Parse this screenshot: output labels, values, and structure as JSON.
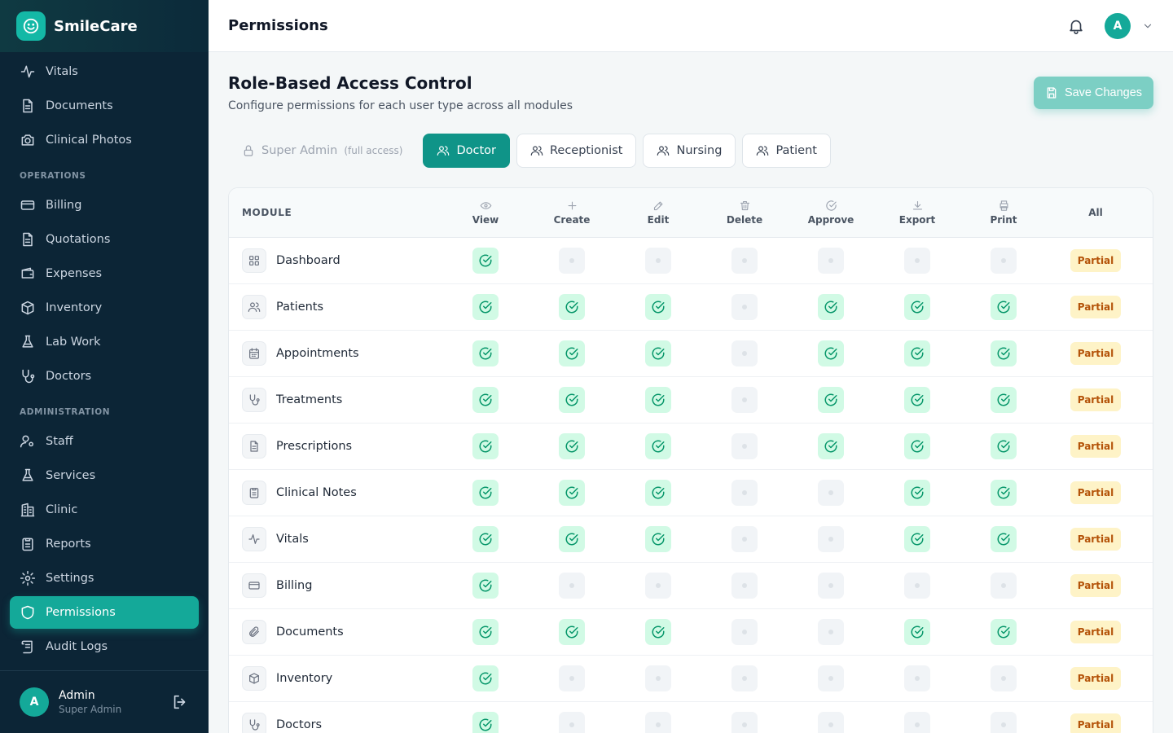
{
  "app": {
    "name": "SmileCare"
  },
  "sidebar": {
    "top_items": [
      {
        "label": "Vitals",
        "icon": "activity-icon"
      },
      {
        "label": "Documents",
        "icon": "file-icon"
      },
      {
        "label": "Clinical Photos",
        "icon": "camera-icon"
      }
    ],
    "operations_label": "OPERATIONS",
    "operations": [
      {
        "label": "Billing",
        "icon": "credit-card-icon"
      },
      {
        "label": "Quotations",
        "icon": "file-icon"
      },
      {
        "label": "Expenses",
        "icon": "wallet-icon"
      },
      {
        "label": "Inventory",
        "icon": "package-icon"
      },
      {
        "label": "Lab Work",
        "icon": "flask-icon"
      },
      {
        "label": "Doctors",
        "icon": "stethoscope-icon"
      }
    ],
    "administration_label": "ADMINISTRATION",
    "administration": [
      {
        "label": "Staff",
        "icon": "user-cog-icon"
      },
      {
        "label": "Services",
        "icon": "flask-icon"
      },
      {
        "label": "Clinic",
        "icon": "building-icon"
      },
      {
        "label": "Reports",
        "icon": "clipboard-icon"
      },
      {
        "label": "Settings",
        "icon": "gear-icon"
      },
      {
        "label": "Permissions",
        "icon": "shield-icon",
        "active": true
      },
      {
        "label": "Audit Logs",
        "icon": "scroll-icon"
      }
    ],
    "user": {
      "initial": "A",
      "name": "Admin",
      "role": "Super Admin"
    }
  },
  "header": {
    "title": "Permissions",
    "avatar_initial": "A"
  },
  "main": {
    "title": "Role-Based Access Control",
    "subtitle": "Configure permissions for each user type across all modules",
    "save_label": "Save Changes",
    "roles": [
      {
        "label": "Super Admin",
        "note": "(full access)",
        "state": "disabled"
      },
      {
        "label": "Doctor",
        "state": "active"
      },
      {
        "label": "Receptionist",
        "state": "normal"
      },
      {
        "label": "Nursing",
        "state": "normal"
      },
      {
        "label": "Patient",
        "state": "normal"
      }
    ],
    "table": {
      "module_header": "MODULE",
      "all_header": "All",
      "permissions": [
        {
          "label": "View",
          "icon": "eye-icon"
        },
        {
          "label": "Create",
          "icon": "plus-icon"
        },
        {
          "label": "Edit",
          "icon": "pencil-icon"
        },
        {
          "label": "Delete",
          "icon": "trash-icon"
        },
        {
          "label": "Approve",
          "icon": "check-circle-icon"
        },
        {
          "label": "Export",
          "icon": "download-icon"
        },
        {
          "label": "Print",
          "icon": "printer-icon"
        }
      ],
      "rows": [
        {
          "module": "Dashboard",
          "icon": "grid-icon",
          "perms": [
            true,
            false,
            false,
            false,
            false,
            false,
            false
          ],
          "status": "Partial"
        },
        {
          "module": "Patients",
          "icon": "users-icon",
          "perms": [
            true,
            true,
            true,
            false,
            true,
            true,
            true
          ],
          "status": "Partial"
        },
        {
          "module": "Appointments",
          "icon": "calendar-icon",
          "perms": [
            true,
            true,
            true,
            false,
            true,
            true,
            true
          ],
          "status": "Partial"
        },
        {
          "module": "Treatments",
          "icon": "stethoscope-icon",
          "perms": [
            true,
            true,
            true,
            false,
            true,
            true,
            true
          ],
          "status": "Partial"
        },
        {
          "module": "Prescriptions",
          "icon": "file-icon",
          "perms": [
            true,
            true,
            true,
            false,
            true,
            true,
            true
          ],
          "status": "Partial"
        },
        {
          "module": "Clinical Notes",
          "icon": "clipboard-icon",
          "perms": [
            true,
            true,
            true,
            false,
            false,
            true,
            true
          ],
          "status": "Partial"
        },
        {
          "module": "Vitals",
          "icon": "activity-icon",
          "perms": [
            true,
            true,
            true,
            false,
            false,
            true,
            true
          ],
          "status": "Partial"
        },
        {
          "module": "Billing",
          "icon": "credit-card-icon",
          "perms": [
            true,
            false,
            false,
            false,
            false,
            false,
            false
          ],
          "status": "Partial"
        },
        {
          "module": "Documents",
          "icon": "paperclip-icon",
          "perms": [
            true,
            true,
            true,
            false,
            false,
            true,
            true
          ],
          "status": "Partial"
        },
        {
          "module": "Inventory",
          "icon": "package-icon",
          "perms": [
            true,
            false,
            false,
            false,
            false,
            false,
            false
          ],
          "status": "Partial"
        },
        {
          "module": "Doctors",
          "icon": "stethoscope-icon",
          "perms": [
            true,
            false,
            false,
            false,
            false,
            false,
            false
          ],
          "status": "Partial"
        }
      ]
    }
  }
}
